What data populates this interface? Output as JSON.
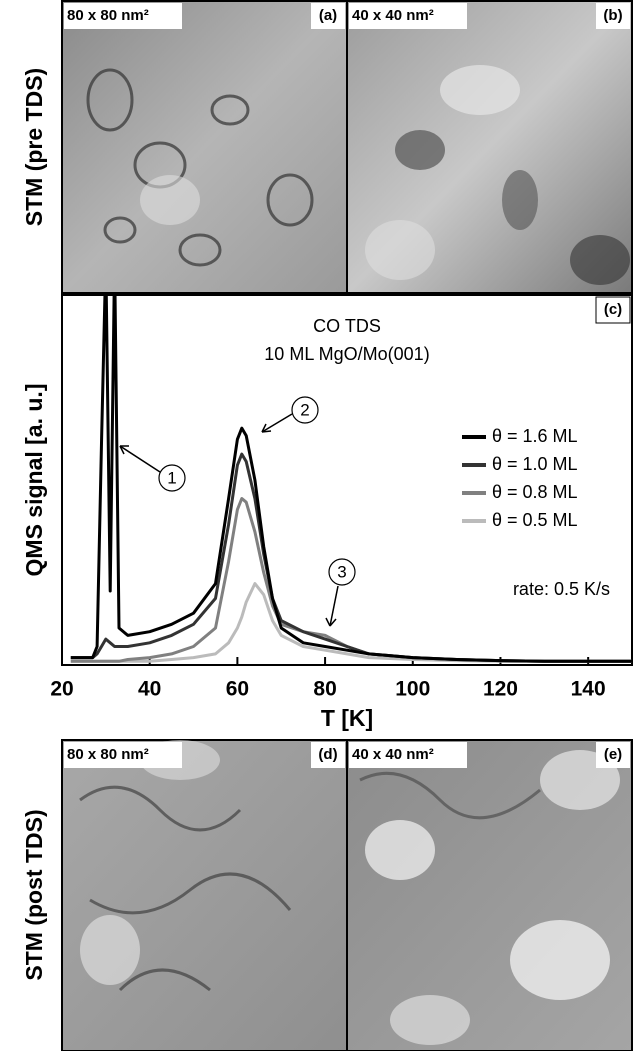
{
  "side_labels": [
    "STM (pre TDS)",
    "STM (post TDS)"
  ],
  "panels": [
    {
      "size": "80 x 80 nm²",
      "label": "(a)"
    },
    {
      "size": "40 x 40 nm²",
      "label": "(b)"
    },
    {
      "label": "(c)"
    },
    {
      "size": "80 x 80 nm²",
      "label": "(d)"
    },
    {
      "size": "40 x 40 nm²",
      "label": "(e)"
    }
  ],
  "chart_data": {
    "type": "line",
    "annotations": [
      "CO TDS",
      "10 ML MgO/Mo(001)",
      "rate: 0.5 K/s"
    ],
    "peak_labels": [
      "1",
      "2",
      "3"
    ],
    "x_label": "T [K]",
    "y_label": "QMS signal [a. u.]",
    "xlim": [
      20,
      150
    ],
    "xticks": [
      20,
      40,
      60,
      80,
      100,
      120,
      140
    ],
    "ylim": [
      0,
      100
    ],
    "legend": "right",
    "x": [
      22,
      27,
      28,
      29,
      30,
      31,
      32,
      33,
      35,
      40,
      45,
      50,
      55,
      58,
      60,
      61,
      62,
      64,
      66,
      68,
      70,
      75,
      80,
      85,
      90,
      100,
      110,
      120,
      130,
      140,
      150
    ],
    "series": [
      {
        "name": "θ = 1.6 ML",
        "color": "#000000",
        "values": [
          2,
          2,
          5,
          60,
          110,
          20,
          110,
          10,
          8,
          9,
          11,
          14,
          22,
          45,
          61,
          64,
          62,
          50,
          32,
          18,
          10,
          6,
          5,
          4,
          3,
          2,
          1.5,
          1.2,
          1,
          1,
          1
        ]
      },
      {
        "name": "θ = 1.0 ML",
        "color": "#333333",
        "values": [
          2,
          2,
          3,
          5,
          7,
          6,
          5,
          5,
          5,
          6,
          8,
          11,
          18,
          38,
          54,
          57,
          55,
          45,
          30,
          18,
          12,
          9,
          7,
          5,
          3,
          2,
          1.5,
          1.2,
          1,
          1,
          1
        ]
      },
      {
        "name": "θ = 0.8 ML",
        "color": "#808080",
        "values": [
          1,
          1,
          1,
          1,
          1,
          1,
          1,
          1,
          1.5,
          2,
          3,
          5,
          10,
          28,
          42,
          45,
          44,
          36,
          25,
          16,
          11,
          9,
          8,
          5,
          3,
          2,
          1.5,
          1.2,
          1,
          1,
          1
        ]
      },
      {
        "name": "θ = 0.5 ML",
        "color": "#bbbbbb",
        "values": [
          1,
          1,
          1,
          1,
          1,
          1,
          1,
          1,
          1,
          1,
          1.5,
          2,
          3,
          6,
          10,
          13,
          17,
          22,
          19,
          12,
          8,
          5,
          4,
          3,
          2,
          1.5,
          1.2,
          1,
          1,
          1,
          1
        ]
      }
    ]
  }
}
